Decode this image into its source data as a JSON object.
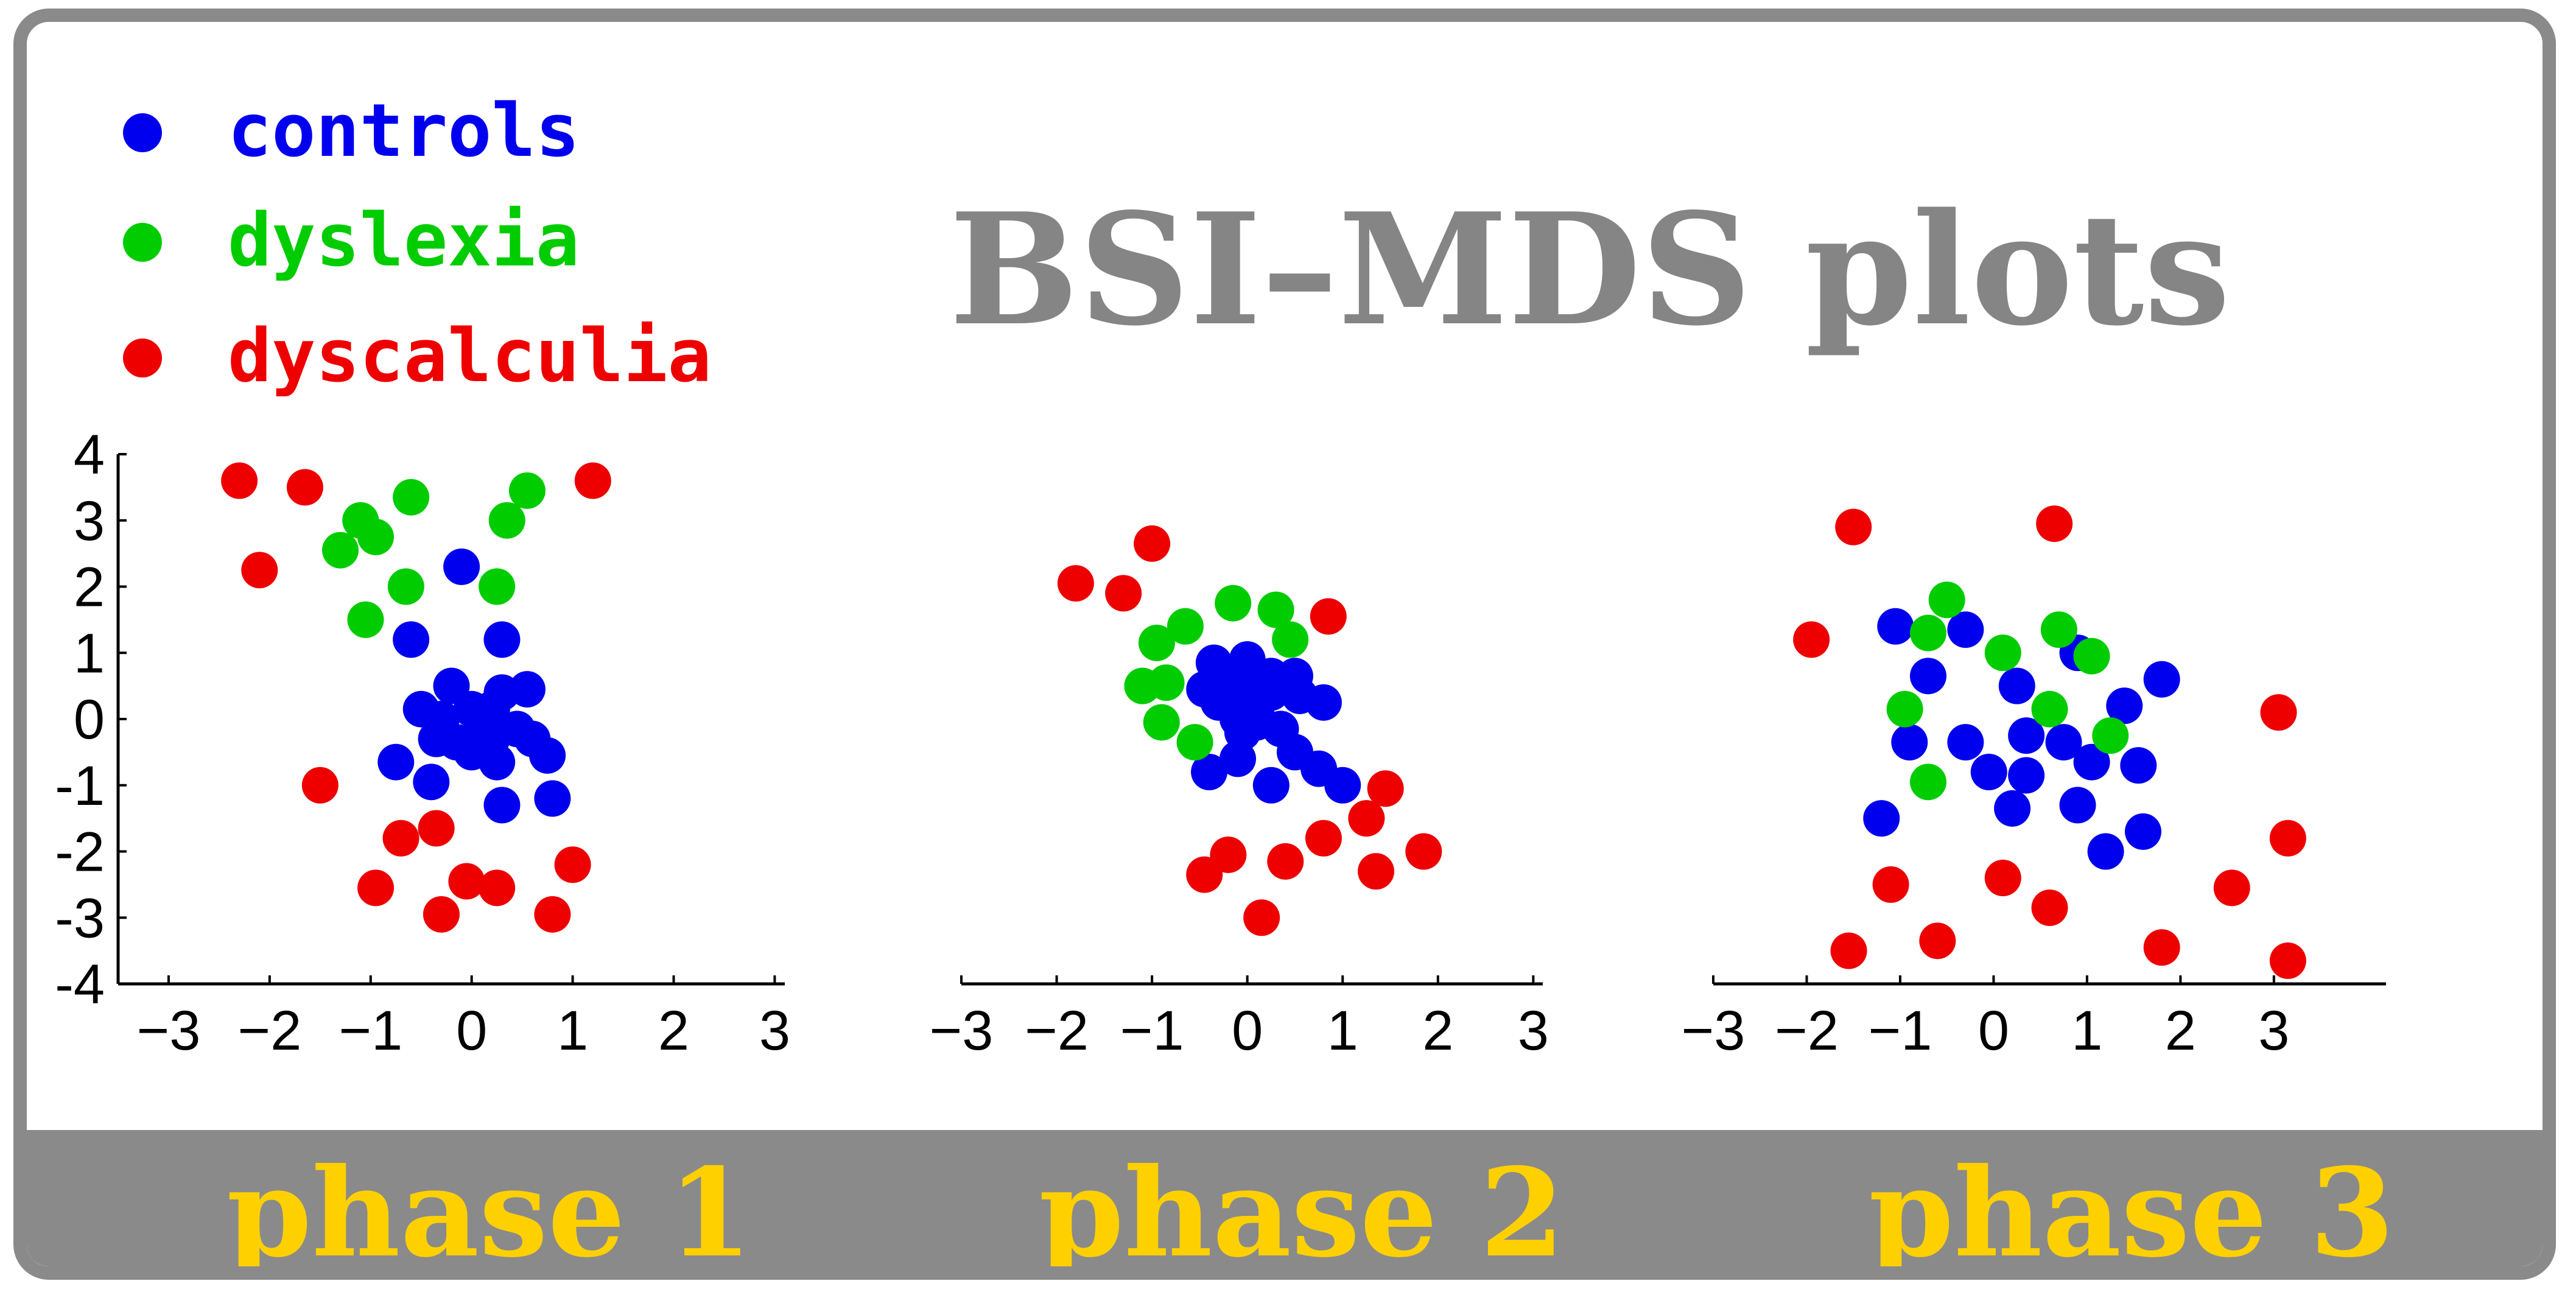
{
  "title": "BSI–MDS plots",
  "colors": {
    "controls": "#0000ee",
    "dyslexia": "#00cc00",
    "dyscalculia": "#ee0000",
    "title": "#858585",
    "frame": "#8a8a8a",
    "phase_label": "#ffd000"
  },
  "legend": [
    {
      "key": "controls",
      "label": "controls"
    },
    {
      "key": "dyslexia",
      "label": "dyslexia"
    },
    {
      "key": "dyscalculia",
      "label": "dyscalculia"
    }
  ],
  "phases": [
    {
      "label": "phase 1"
    },
    {
      "label": "phase 2"
    },
    {
      "label": "phase 3"
    }
  ],
  "chart_data": [
    {
      "type": "scatter",
      "title": "phase 1",
      "xlim": [
        -3.5,
        3.1
      ],
      "ylim": [
        -4,
        4
      ],
      "xticks": [
        "−3",
        "−2",
        "−1",
        "0",
        "1",
        "2",
        "3"
      ],
      "yticks": [
        "4",
        "3",
        "2",
        "1",
        "0",
        "-1",
        "-2",
        "-3",
        "-4"
      ],
      "series": [
        {
          "name": "controls",
          "points": [
            [
              -0.1,
              2.3
            ],
            [
              -0.6,
              1.2
            ],
            [
              0.3,
              1.2
            ],
            [
              -0.2,
              0.5
            ],
            [
              0.3,
              0.4
            ],
            [
              0.55,
              0.45
            ],
            [
              -0.5,
              0.15
            ],
            [
              0.0,
              0.15
            ],
            [
              0.2,
              0.15
            ],
            [
              -0.3,
              0.0
            ],
            [
              0.1,
              -0.1
            ],
            [
              0.45,
              -0.15
            ],
            [
              -0.35,
              -0.3
            ],
            [
              -0.15,
              -0.35
            ],
            [
              0.0,
              -0.5
            ],
            [
              0.2,
              -0.3
            ],
            [
              0.6,
              -0.3
            ],
            [
              -0.75,
              -0.65
            ],
            [
              0.25,
              -0.65
            ],
            [
              0.75,
              -0.55
            ],
            [
              -0.4,
              -0.95
            ],
            [
              0.3,
              -1.3
            ],
            [
              0.8,
              -1.2
            ]
          ]
        },
        {
          "name": "dyslexia",
          "points": [
            [
              -0.6,
              3.35
            ],
            [
              0.55,
              3.45
            ],
            [
              -1.1,
              3.0
            ],
            [
              -0.95,
              2.75
            ],
            [
              0.35,
              3.0
            ],
            [
              -1.3,
              2.55
            ],
            [
              -0.65,
              2.0
            ],
            [
              0.25,
              2.0
            ],
            [
              -1.05,
              1.5
            ]
          ]
        },
        {
          "name": "dyscalculia",
          "points": [
            [
              -2.3,
              3.6
            ],
            [
              -1.65,
              3.5
            ],
            [
              1.2,
              3.6
            ],
            [
              -2.1,
              2.25
            ],
            [
              -1.5,
              -1.0
            ],
            [
              -0.35,
              -1.65
            ],
            [
              -0.7,
              -1.8
            ],
            [
              1.0,
              -2.2
            ],
            [
              -0.95,
              -2.55
            ],
            [
              -0.05,
              -2.45
            ],
            [
              0.25,
              -2.55
            ],
            [
              -0.3,
              -2.95
            ],
            [
              0.8,
              -2.95
            ]
          ]
        }
      ]
    },
    {
      "type": "scatter",
      "title": "phase 2",
      "xlim": [
        -3.0,
        3.1
      ],
      "ylim": [
        -4,
        4
      ],
      "xticks": [
        "−3",
        "−2",
        "−1",
        "0",
        "1",
        "2",
        "3"
      ],
      "series": [
        {
          "name": "controls",
          "points": [
            [
              -0.35,
              0.85
            ],
            [
              0.0,
              0.9
            ],
            [
              -0.15,
              0.7
            ],
            [
              0.25,
              0.65
            ],
            [
              0.5,
              0.65
            ],
            [
              -0.45,
              0.45
            ],
            [
              -0.05,
              0.45
            ],
            [
              0.25,
              0.4
            ],
            [
              0.55,
              0.35
            ],
            [
              0.8,
              0.25
            ],
            [
              -0.3,
              0.25
            ],
            [
              0.1,
              0.2
            ],
            [
              -0.1,
              0.0
            ],
            [
              0.1,
              -0.05
            ],
            [
              0.35,
              -0.15
            ],
            [
              -0.05,
              -0.2
            ],
            [
              0.5,
              -0.5
            ],
            [
              0.75,
              -0.75
            ],
            [
              -0.1,
              -0.6
            ],
            [
              -0.4,
              -0.8
            ],
            [
              0.25,
              -1.0
            ],
            [
              1.0,
              -1.0
            ]
          ]
        },
        {
          "name": "dyslexia",
          "points": [
            [
              -0.15,
              1.75
            ],
            [
              0.3,
              1.65
            ],
            [
              -0.65,
              1.4
            ],
            [
              -0.95,
              1.15
            ],
            [
              0.45,
              1.2
            ],
            [
              -1.1,
              0.5
            ],
            [
              -0.85,
              0.55
            ],
            [
              -0.9,
              -0.05
            ],
            [
              -0.55,
              -0.35
            ]
          ]
        },
        {
          "name": "dyscalculia",
          "points": [
            [
              -1.0,
              2.65
            ],
            [
              -1.8,
              2.05
            ],
            [
              -1.3,
              1.9
            ],
            [
              0.85,
              1.55
            ],
            [
              1.45,
              -1.05
            ],
            [
              1.25,
              -1.5
            ],
            [
              0.8,
              -1.8
            ],
            [
              1.85,
              -2.0
            ],
            [
              -0.2,
              -2.05
            ],
            [
              0.4,
              -2.15
            ],
            [
              1.35,
              -2.3
            ],
            [
              -0.45,
              -2.35
            ],
            [
              0.15,
              -3.0
            ]
          ]
        }
      ]
    },
    {
      "type": "scatter",
      "title": "phase 3",
      "xlim": [
        -3.0,
        4.2
      ],
      "ylim": [
        -4,
        4
      ],
      "xticks": [
        "−3",
        "−2",
        "−1",
        "0",
        "1",
        "2",
        "3"
      ],
      "series": [
        {
          "name": "controls",
          "points": [
            [
              -1.05,
              1.4
            ],
            [
              -0.3,
              1.35
            ],
            [
              -0.7,
              0.65
            ],
            [
              0.9,
              1.0
            ],
            [
              1.8,
              0.6
            ],
            [
              0.25,
              0.5
            ],
            [
              1.4,
              0.2
            ],
            [
              -0.9,
              -0.35
            ],
            [
              -0.3,
              -0.35
            ],
            [
              0.35,
              -0.25
            ],
            [
              0.75,
              -0.35
            ],
            [
              -0.05,
              -0.8
            ],
            [
              0.35,
              -0.85
            ],
            [
              1.05,
              -0.65
            ],
            [
              1.55,
              -0.7
            ],
            [
              -1.2,
              -1.5
            ],
            [
              0.2,
              -1.35
            ],
            [
              0.9,
              -1.3
            ],
            [
              1.2,
              -2.0
            ],
            [
              1.6,
              -1.7
            ]
          ]
        },
        {
          "name": "dyslexia",
          "points": [
            [
              -0.5,
              1.8
            ],
            [
              -0.7,
              1.3
            ],
            [
              0.7,
              1.35
            ],
            [
              0.1,
              1.0
            ],
            [
              1.05,
              0.95
            ],
            [
              -0.95,
              0.15
            ],
            [
              0.6,
              0.15
            ],
            [
              1.25,
              -0.25
            ],
            [
              -0.7,
              -0.95
            ]
          ]
        },
        {
          "name": "dyscalculia",
          "points": [
            [
              -1.5,
              2.9
            ],
            [
              0.65,
              2.95
            ],
            [
              -1.95,
              1.2
            ],
            [
              3.05,
              0.1
            ],
            [
              3.15,
              -1.8
            ],
            [
              -1.1,
              -2.5
            ],
            [
              0.1,
              -2.4
            ],
            [
              0.6,
              -2.85
            ],
            [
              2.55,
              -2.55
            ],
            [
              -1.55,
              -3.5
            ],
            [
              -0.6,
              -3.35
            ],
            [
              1.8,
              -3.45
            ],
            [
              3.15,
              -3.65
            ]
          ]
        }
      ]
    }
  ]
}
